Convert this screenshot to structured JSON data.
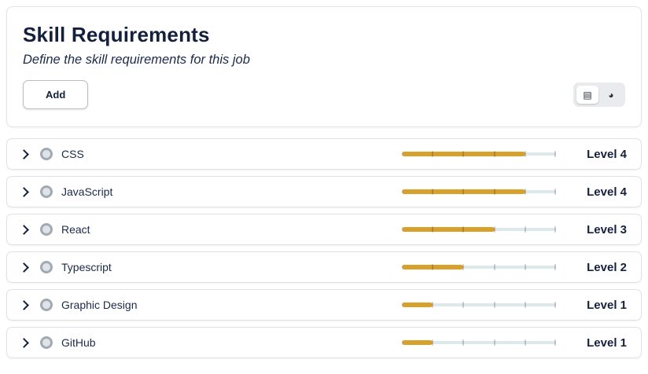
{
  "header": {
    "title": "Skill Requirements",
    "subtitle": "Define the skill requirements for this job",
    "add_button_label": "Add"
  },
  "view_toggle": {
    "list_icon_glyph": "▤",
    "pie_icon_glyph": "◕",
    "selected": "list"
  },
  "colors": {
    "accent_fill": "#d7a12c",
    "track": "#dde7ec",
    "heading": "#14213d"
  },
  "slider_max": 5,
  "skills": [
    {
      "name": "CSS",
      "level": 4,
      "level_label": "Level 4"
    },
    {
      "name": "JavaScript",
      "level": 4,
      "level_label": "Level 4"
    },
    {
      "name": "React",
      "level": 3,
      "level_label": "Level 3"
    },
    {
      "name": "Typescript",
      "level": 2,
      "level_label": "Level 2"
    },
    {
      "name": "Graphic Design",
      "level": 1,
      "level_label": "Level 1"
    },
    {
      "name": "GitHub",
      "level": 1,
      "level_label": "Level 1"
    }
  ]
}
